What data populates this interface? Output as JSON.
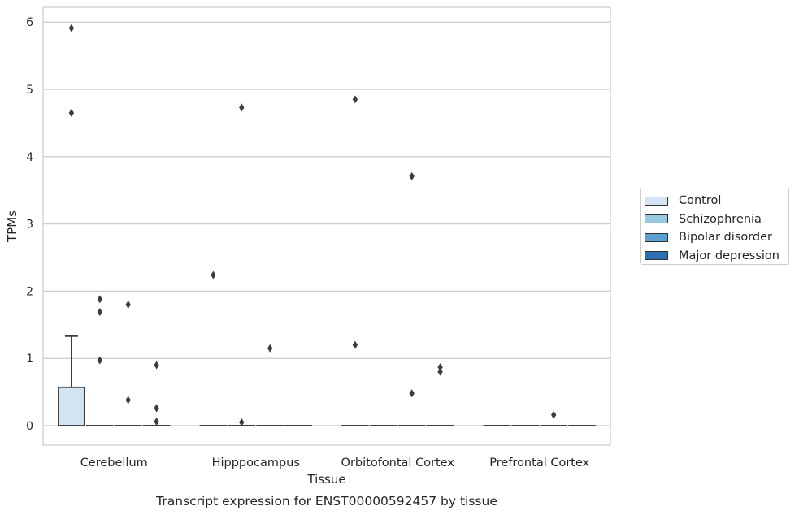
{
  "chart_data": {
    "type": "box",
    "title": "Transcript expression for ENST00000592457 by tissue",
    "xlabel": "Tissue",
    "ylabel": "TPMs",
    "ylim": [
      -0.29,
      6.22
    ],
    "yticks": [
      0,
      1,
      2,
      3,
      4,
      5,
      6
    ],
    "grid": true,
    "legend_position": "right",
    "categories": [
      "Cerebellum",
      "Hipppocampus",
      "Orbitofontal Cortex",
      "Prefrontal Cortex"
    ],
    "series": [
      {
        "name": "Control",
        "color": "#d3e3f3",
        "boxes": [
          {
            "q1": 0,
            "median": 0,
            "q3": 0.57,
            "whisker_low": 0,
            "whisker_high": 1.33,
            "outliers": [
              5.91,
              4.65
            ]
          },
          {
            "q1": 0,
            "median": 0,
            "q3": 0,
            "whisker_low": 0,
            "whisker_high": 0,
            "outliers": [
              2.24
            ]
          },
          {
            "q1": 0,
            "median": 0,
            "q3": 0,
            "whisker_low": 0,
            "whisker_high": 0,
            "outliers": [
              4.85,
              1.2
            ]
          },
          {
            "q1": 0,
            "median": 0,
            "q3": 0,
            "whisker_low": 0,
            "whisker_high": 0,
            "outliers": []
          }
        ]
      },
      {
        "name": "Schizophrenia",
        "color": "#9ac8e0",
        "boxes": [
          {
            "q1": 0,
            "median": 0,
            "q3": 0,
            "whisker_low": 0,
            "whisker_high": 0,
            "outliers": [
              1.88,
              1.69,
              0.97
            ]
          },
          {
            "q1": 0,
            "median": 0,
            "q3": 0,
            "whisker_low": 0,
            "whisker_high": 0,
            "outliers": [
              4.73,
              0.05
            ]
          },
          {
            "q1": 0,
            "median": 0,
            "q3": 0,
            "whisker_low": 0,
            "whisker_high": 0,
            "outliers": []
          },
          {
            "q1": 0,
            "median": 0,
            "q3": 0,
            "whisker_low": 0,
            "whisker_high": 0,
            "outliers": []
          }
        ]
      },
      {
        "name": "Bipolar disorder",
        "color": "#5a9fcf",
        "boxes": [
          {
            "q1": 0,
            "median": 0,
            "q3": 0,
            "whisker_low": 0,
            "whisker_high": 0,
            "outliers": [
              1.8,
              0.38
            ]
          },
          {
            "q1": 0,
            "median": 0,
            "q3": 0,
            "whisker_low": 0,
            "whisker_high": 0,
            "outliers": [
              1.15
            ]
          },
          {
            "q1": 0,
            "median": 0,
            "q3": 0,
            "whisker_low": 0,
            "whisker_high": 0,
            "outliers": [
              3.71,
              0.48
            ]
          },
          {
            "q1": 0,
            "median": 0,
            "q3": 0,
            "whisker_low": 0,
            "whisker_high": 0,
            "outliers": [
              0.16
            ]
          }
        ]
      },
      {
        "name": "Major depression",
        "color": "#2c6eb0",
        "boxes": [
          {
            "q1": 0,
            "median": 0,
            "q3": 0,
            "whisker_low": 0,
            "whisker_high": 0,
            "outliers": [
              0.9,
              0.26,
              0.06
            ]
          },
          {
            "q1": 0,
            "median": 0,
            "q3": 0,
            "whisker_low": 0,
            "whisker_high": 0,
            "outliers": []
          },
          {
            "q1": 0,
            "median": 0,
            "q3": 0,
            "whisker_low": 0,
            "whisker_high": 0,
            "outliers": [
              0.87,
              0.8
            ]
          },
          {
            "q1": 0,
            "median": 0,
            "q3": 0,
            "whisker_low": 0,
            "whisker_high": 0,
            "outliers": []
          }
        ]
      }
    ]
  }
}
